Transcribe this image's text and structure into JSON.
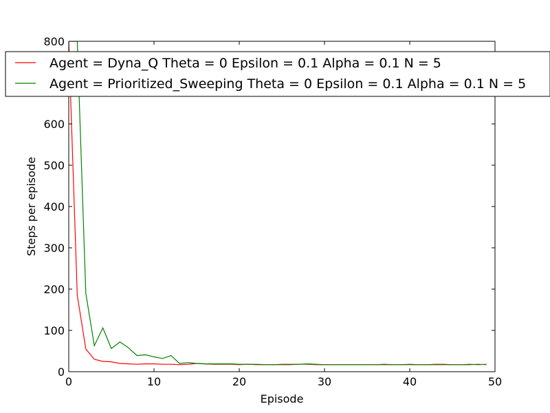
{
  "chart_data": {
    "type": "line",
    "title": "",
    "xlabel": "Episode",
    "ylabel": "Steps per episode",
    "xlim": [
      0,
      50
    ],
    "ylim": [
      0,
      800
    ],
    "xticks": [
      0,
      10,
      20,
      30,
      40,
      50
    ],
    "yticks": [
      0,
      100,
      200,
      300,
      400,
      500,
      600,
      700,
      800
    ],
    "grid": false,
    "legend_position": "top",
    "x": [
      0,
      1,
      2,
      3,
      4,
      5,
      6,
      7,
      8,
      9,
      10,
      11,
      12,
      13,
      14,
      15,
      16,
      17,
      18,
      19,
      20,
      21,
      22,
      23,
      24,
      25,
      26,
      27,
      28,
      29,
      30,
      31,
      32,
      33,
      34,
      35,
      36,
      37,
      38,
      39,
      40,
      41,
      42,
      43,
      44,
      45,
      46,
      47,
      48,
      49
    ],
    "series": [
      {
        "name": "Agent = Dyna_Q Theta = 0 Epsilon = 0.1 Alpha = 0.1 N = 5",
        "color": "#ff0000",
        "values": [
          800,
          185,
          55,
          30,
          25,
          24,
          20,
          19,
          18,
          19,
          19,
          18,
          18,
          17,
          18,
          20,
          19,
          18,
          18,
          18,
          17,
          18,
          17,
          17,
          17,
          17,
          17,
          18,
          18,
          17,
          17,
          17,
          17,
          17,
          17,
          17,
          17,
          17,
          17,
          17,
          17,
          17,
          17,
          17,
          17,
          17,
          17,
          17,
          18,
          17
        ]
      },
      {
        "name": "Agent = Prioritized_Sweeping Theta = 0 Epsilon = 0.1 Alpha = 0.1 N = 5",
        "color": "#008000",
        "values": [
          800,
          800,
          190,
          63,
          106,
          56,
          72,
          58,
          39,
          41,
          36,
          32,
          39,
          20,
          22,
          20,
          19,
          19,
          19,
          19,
          18,
          18,
          18,
          17,
          17,
          18,
          18,
          18,
          19,
          18,
          17,
          17,
          17,
          17,
          17,
          17,
          17,
          18,
          17,
          17,
          18,
          17,
          17,
          18,
          18,
          17,
          17,
          18,
          17,
          18
        ]
      }
    ]
  }
}
